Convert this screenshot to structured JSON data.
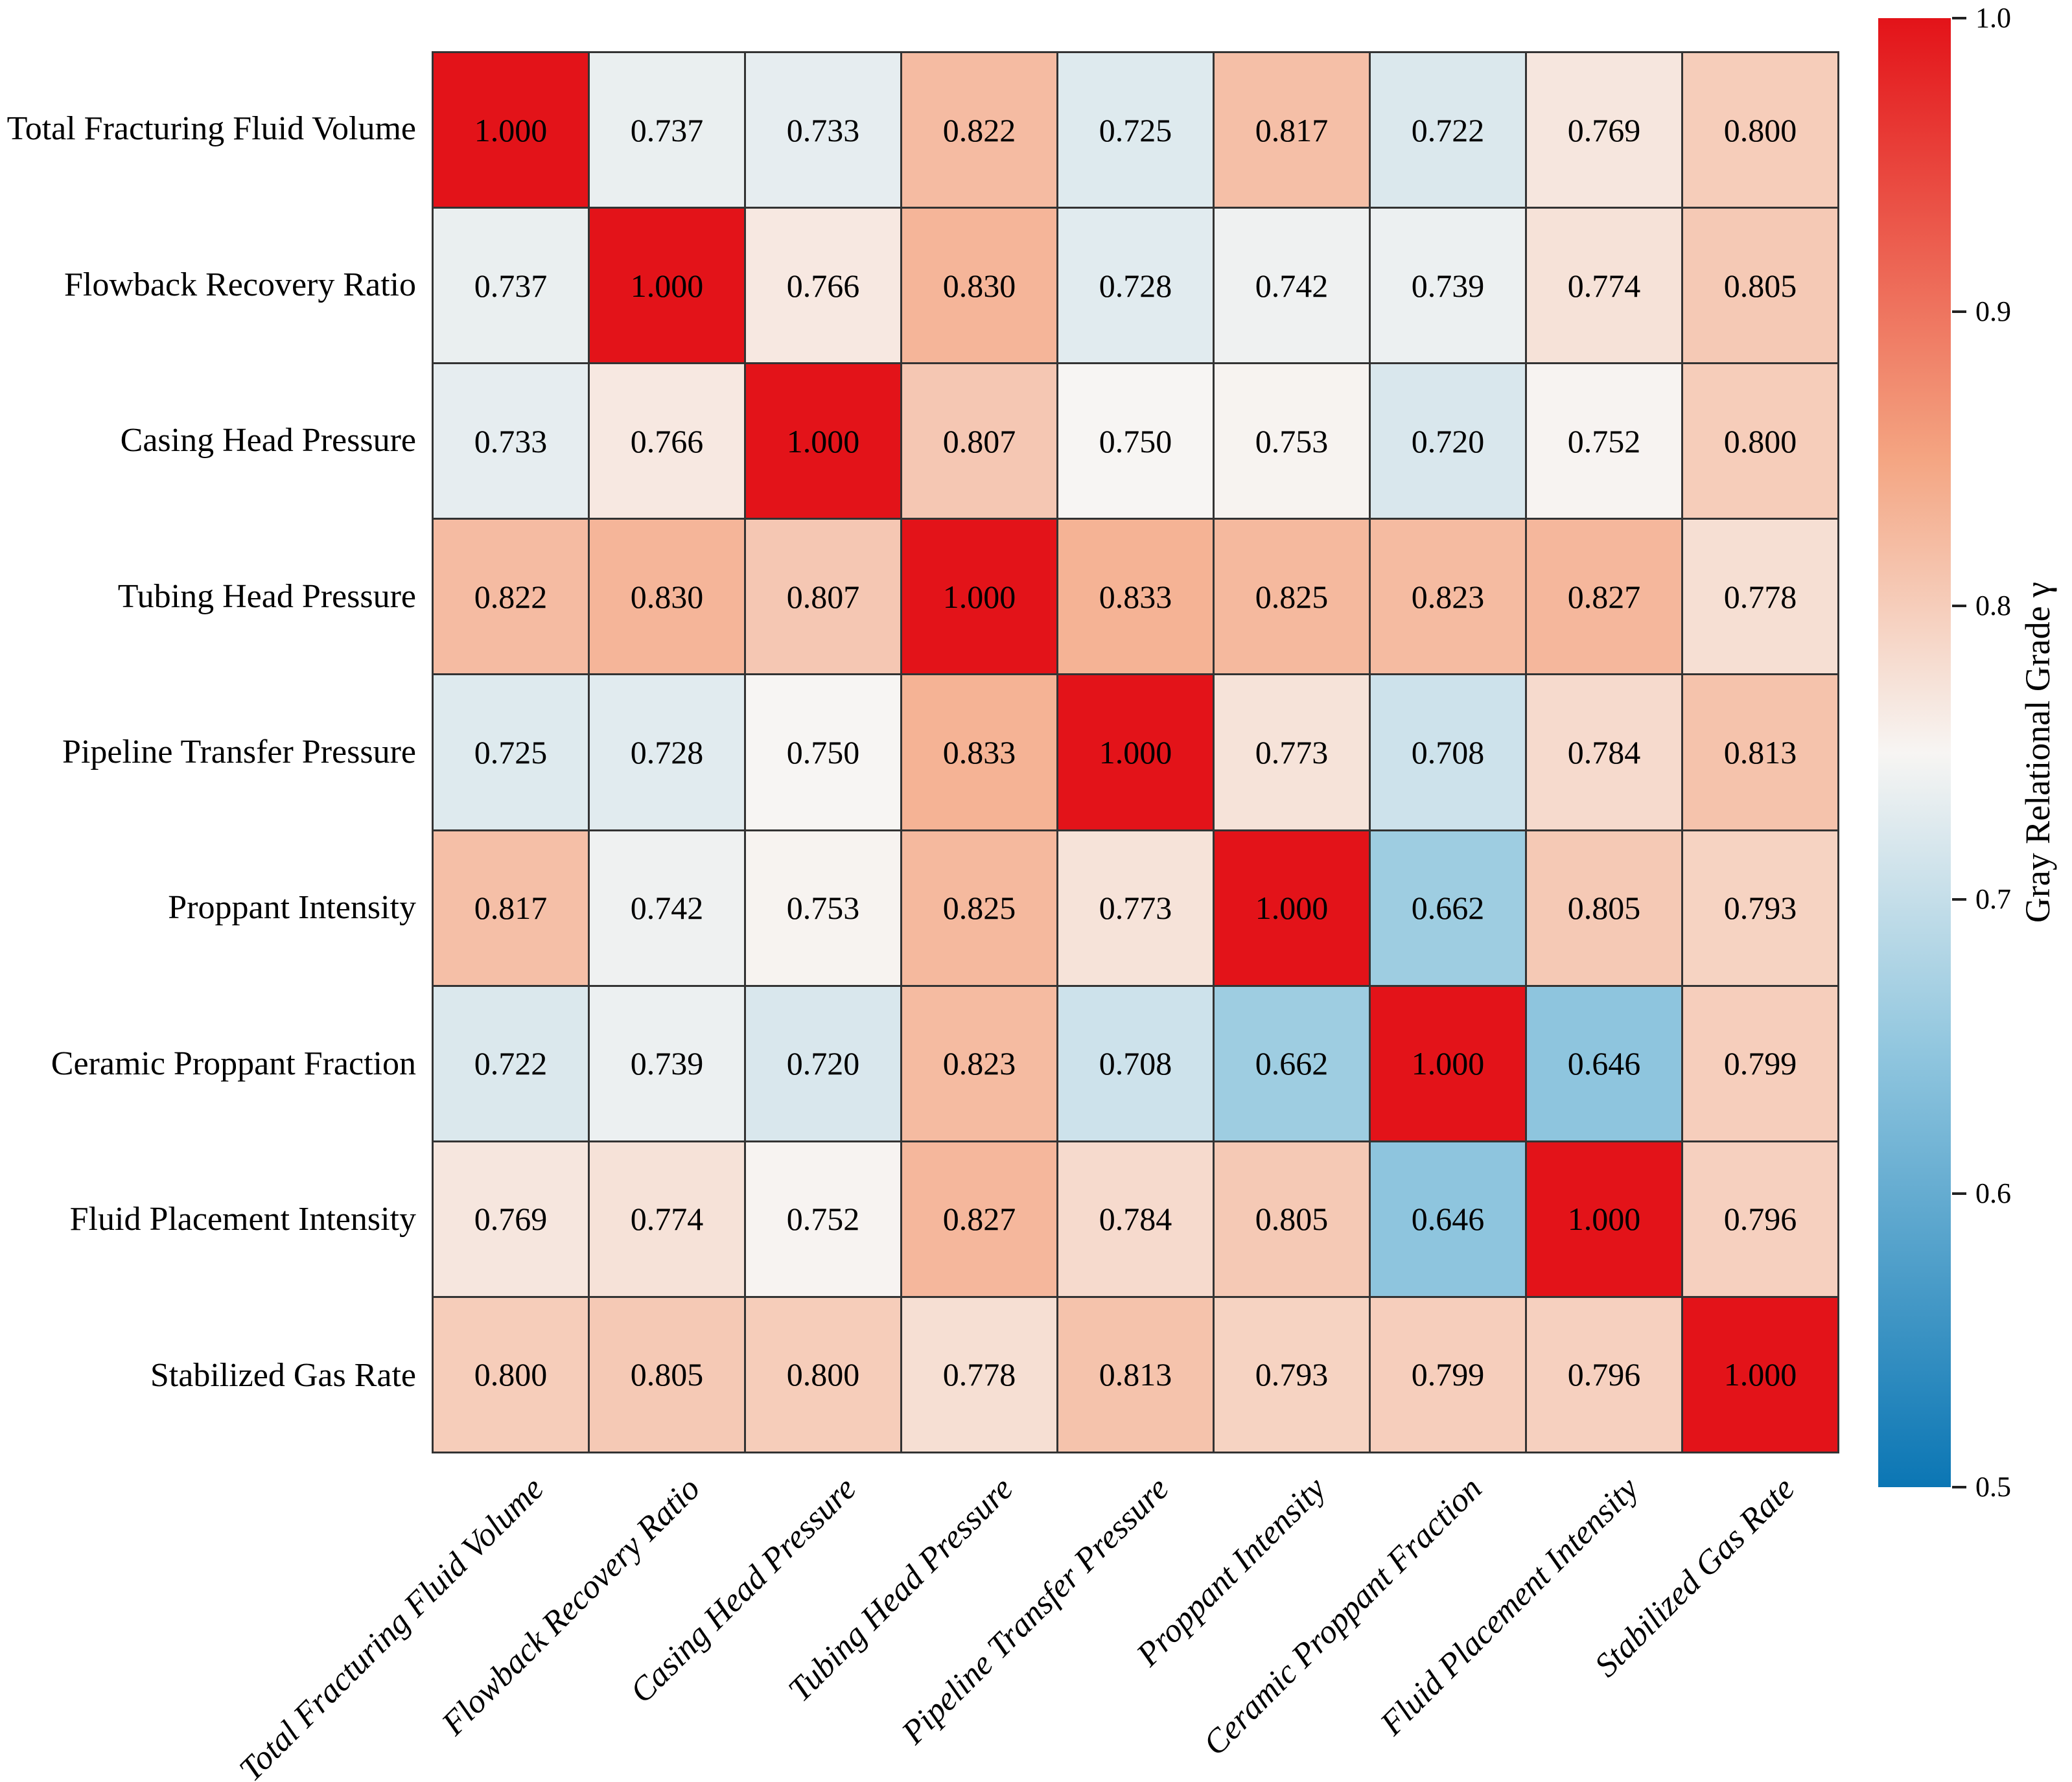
{
  "chart_data": {
    "type": "heatmap",
    "title": "",
    "categories": [
      "Total Fracturing Fluid Volume",
      "Flowback Recovery Ratio",
      "Casing Head Pressure",
      "Tubing Head Pressure",
      "Pipeline Transfer Pressure",
      "Proppant Intensity",
      "Ceramic Proppant Fraction",
      "Fluid Placement Intensity",
      "Stabilized Gas Rate"
    ],
    "matrix": [
      [
        1.0,
        0.737,
        0.733,
        0.822,
        0.725,
        0.817,
        0.722,
        0.769,
        0.8
      ],
      [
        0.737,
        1.0,
        0.766,
        0.83,
        0.728,
        0.742,
        0.739,
        0.774,
        0.805
      ],
      [
        0.733,
        0.766,
        1.0,
        0.807,
        0.75,
        0.753,
        0.72,
        0.752,
        0.8
      ],
      [
        0.822,
        0.83,
        0.807,
        1.0,
        0.833,
        0.825,
        0.823,
        0.827,
        0.778
      ],
      [
        0.725,
        0.728,
        0.75,
        0.833,
        1.0,
        0.773,
        0.708,
        0.784,
        0.813
      ],
      [
        0.817,
        0.742,
        0.753,
        0.825,
        0.773,
        1.0,
        0.662,
        0.805,
        0.793
      ],
      [
        0.722,
        0.739,
        0.72,
        0.823,
        0.708,
        0.662,
        1.0,
        0.646,
        0.799
      ],
      [
        0.769,
        0.774,
        0.752,
        0.827,
        0.784,
        0.805,
        0.646,
        1.0,
        0.796
      ],
      [
        0.8,
        0.805,
        0.8,
        0.778,
        0.813,
        0.793,
        0.799,
        0.796,
        1.0
      ]
    ],
    "cell_value_decimals": 3,
    "vmin": 0.5,
    "vmax": 1.0,
    "grid_on": true,
    "grid_line_color": "#333333",
    "cell_text_color": "#000000",
    "colorbar": {
      "label": "Gray Relational Grade γ",
      "ticks": [
        1.0,
        0.9,
        0.8,
        0.7,
        0.6,
        0.5
      ],
      "position": "right"
    },
    "colormap": {
      "stops": [
        [
          0.0,
          "#0b76b4"
        ],
        [
          0.3,
          "#92c7df"
        ],
        [
          0.5,
          "#f7f5f3"
        ],
        [
          0.7,
          "#f4a582"
        ],
        [
          1.0,
          "#e31319"
        ]
      ]
    }
  }
}
